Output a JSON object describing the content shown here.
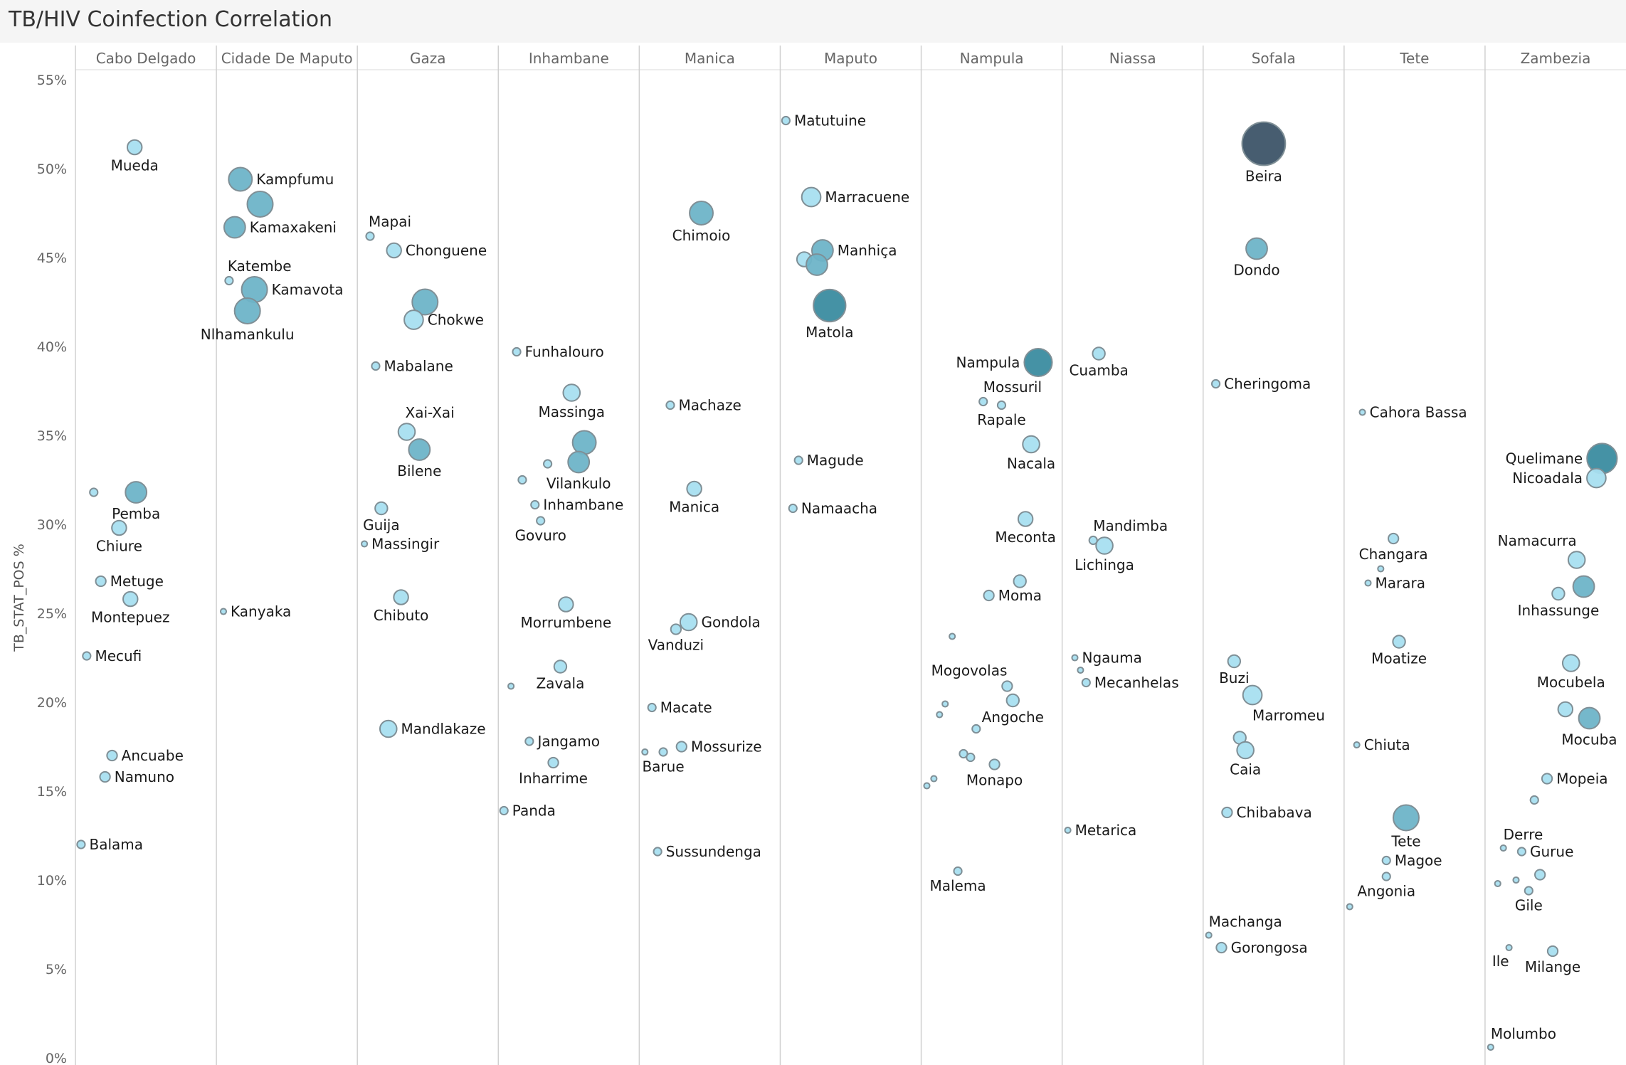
{
  "title": "TB/HIV Coinfection Correlation",
  "chart_data": {
    "type": "scatter",
    "ylabel": "TB_STAT_POS %",
    "ylim": [
      0,
      55
    ],
    "yticks": [
      "0%",
      "5%",
      "10%",
      "15%",
      "20%",
      "25%",
      "30%",
      "35%",
      "40%",
      "45%",
      "50%",
      "55%"
    ],
    "grid": false,
    "colors": {
      "low": "#a8dff0",
      "mid": "#6eb4c8",
      "high": "#3b8ca0",
      "max": "#3d5468",
      "stroke": "#7f8f96"
    },
    "columns": [
      {
        "name": "Cabo Delgado",
        "points": [
          {
            "label": "Mueda",
            "y": 51.2,
            "size": 5,
            "lx": 0.42,
            "lpos": "below"
          },
          {
            "label": "",
            "y": 31.8,
            "size": 2,
            "lx": 0.13
          },
          {
            "label": "Pemba",
            "y": 31.8,
            "size": 8,
            "lx": 0.43,
            "lpos": "below"
          },
          {
            "label": "Chiure",
            "y": 29.8,
            "size": 5,
            "lx": 0.31,
            "lpos": "below"
          },
          {
            "label": "Metuge",
            "y": 26.8,
            "size": 3,
            "lx": 0.18,
            "lpos": "right"
          },
          {
            "label": "Montepuez",
            "y": 25.8,
            "size": 5,
            "lx": 0.39,
            "lpos": "below"
          },
          {
            "label": "Mecufi",
            "y": 22.6,
            "size": 2,
            "lx": 0.08,
            "lpos": "right"
          },
          {
            "label": "Ancuabe",
            "y": 17.0,
            "size": 3,
            "lx": 0.26,
            "lpos": "right"
          },
          {
            "label": "Namuno",
            "y": 15.8,
            "size": 3,
            "lx": 0.21,
            "lpos": "right"
          },
          {
            "label": "Balama",
            "y": 12.0,
            "size": 2,
            "lx": 0.04,
            "lpos": "right"
          }
        ]
      },
      {
        "name": "Cidade De Maputo",
        "points": [
          {
            "label": "Kampfumu",
            "y": 49.4,
            "size": 9,
            "lx": 0.17,
            "lpos": "right"
          },
          {
            "label": "",
            "y": 48.0,
            "size": 10,
            "lx": 0.31
          },
          {
            "label": "Kamaxakeni",
            "y": 46.7,
            "size": 8,
            "lx": 0.13,
            "lpos": "right"
          },
          {
            "label": "Katembe",
            "y": 43.7,
            "size": 2,
            "lx": 0.09,
            "lpos": "above"
          },
          {
            "label": "Kamavota",
            "y": 43.2,
            "size": 10,
            "lx": 0.27,
            "lpos": "right"
          },
          {
            "label": "Nlhamankulu",
            "y": 42.0,
            "size": 10,
            "lx": 0.22,
            "lpos": "below"
          },
          {
            "label": "Kanyaka",
            "y": 25.1,
            "size": 1,
            "lx": 0.05,
            "lpos": "right"
          }
        ]
      },
      {
        "name": "Gaza",
        "points": [
          {
            "label": "Mapai",
            "y": 46.2,
            "size": 2,
            "lx": 0.09,
            "lpos": "above"
          },
          {
            "label": "Chonguene",
            "y": 45.4,
            "size": 5,
            "lx": 0.26,
            "lpos": "right"
          },
          {
            "label": "",
            "y": 42.5,
            "size": 10,
            "lx": 0.48
          },
          {
            "label": "Chokwe",
            "y": 41.5,
            "size": 7,
            "lx": 0.4,
            "lpos": "right"
          },
          {
            "label": "Mabalane",
            "y": 38.9,
            "size": 2,
            "lx": 0.13,
            "lpos": "right"
          },
          {
            "label": "Xai-Xai",
            "y": 35.2,
            "size": 6,
            "lx": 0.35,
            "lpos": "above"
          },
          {
            "label": "Bilene",
            "y": 34.2,
            "size": 8,
            "lx": 0.44,
            "lpos": "below"
          },
          {
            "label": "Guija",
            "y": 30.9,
            "size": 4,
            "lx": 0.17,
            "lpos": "below"
          },
          {
            "label": "Massingir",
            "y": 28.9,
            "size": 1,
            "lx": 0.05,
            "lpos": "right"
          },
          {
            "label": "Chibuto",
            "y": 25.9,
            "size": 5,
            "lx": 0.31,
            "lpos": "below"
          },
          {
            "label": "Mandlakaze",
            "y": 18.5,
            "size": 6,
            "lx": 0.22,
            "lpos": "right"
          }
        ]
      },
      {
        "name": "Inhambane",
        "points": [
          {
            "label": "Funhalouro",
            "y": 39.7,
            "size": 2,
            "lx": 0.13,
            "lpos": "right"
          },
          {
            "label": "Massinga",
            "y": 37.4,
            "size": 6,
            "lx": 0.52,
            "lpos": "below"
          },
          {
            "label": "",
            "y": 34.6,
            "size": 9,
            "lx": 0.61
          },
          {
            "label": "",
            "y": 33.4,
            "size": 2,
            "lx": 0.35
          },
          {
            "label": "Vilankulo",
            "y": 33.5,
            "size": 8,
            "lx": 0.57,
            "lpos": "below"
          },
          {
            "label": "",
            "y": 32.5,
            "size": 2,
            "lx": 0.17
          },
          {
            "label": "Inhambane",
            "y": 31.1,
            "size": 2,
            "lx": 0.26,
            "lpos": "right"
          },
          {
            "label": "Govuro",
            "y": 30.2,
            "size": 2,
            "lx": 0.3,
            "lpos": "below"
          },
          {
            "label": "Morrumbene",
            "y": 25.5,
            "size": 5,
            "lx": 0.48,
            "lpos": "below"
          },
          {
            "label": "Zavala",
            "y": 22.0,
            "size": 4,
            "lx": 0.44,
            "lpos": "below"
          },
          {
            "label": "",
            "y": 20.9,
            "size": 1,
            "lx": 0.09
          },
          {
            "label": "Jangamo",
            "y": 17.8,
            "size": 2,
            "lx": 0.22,
            "lpos": "right"
          },
          {
            "label": "Inharrime",
            "y": 16.6,
            "size": 3,
            "lx": 0.39,
            "lpos": "below"
          },
          {
            "label": "Panda",
            "y": 13.9,
            "size": 2,
            "lx": 0.04,
            "lpos": "right"
          }
        ]
      },
      {
        "name": "Manica",
        "points": [
          {
            "label": "Chimoio",
            "y": 47.5,
            "size": 9,
            "lx": 0.44,
            "lpos": "below"
          },
          {
            "label": "Machaze",
            "y": 36.7,
            "size": 2,
            "lx": 0.22,
            "lpos": "right"
          },
          {
            "label": "Manica",
            "y": 32.0,
            "size": 5,
            "lx": 0.39,
            "lpos": "below"
          },
          {
            "label": "Gondola",
            "y": 24.5,
            "size": 6,
            "lx": 0.35,
            "lpos": "right"
          },
          {
            "label": "Vanduzi",
            "y": 24.1,
            "size": 3,
            "lx": 0.26,
            "lpos": "below"
          },
          {
            "label": "Macate",
            "y": 19.7,
            "size": 2,
            "lx": 0.09,
            "lpos": "right"
          },
          {
            "label": "",
            "y": 17.2,
            "size": 1,
            "lx": 0.04
          },
          {
            "label": "Barue",
            "y": 17.2,
            "size": 2,
            "lx": 0.17,
            "lpos": "below"
          },
          {
            "label": "Mossurize",
            "y": 17.5,
            "size": 3,
            "lx": 0.3,
            "lpos": "right"
          },
          {
            "label": "Sussundenga",
            "y": 11.6,
            "size": 2,
            "lx": 0.13,
            "lpos": "right"
          }
        ]
      },
      {
        "name": "Maputo",
        "points": [
          {
            "label": "Matutuine",
            "y": 52.7,
            "size": 2,
            "lx": 0.04,
            "lpos": "right"
          },
          {
            "label": "Marracuene",
            "y": 48.4,
            "size": 7,
            "lx": 0.22,
            "lpos": "right"
          },
          {
            "label": "Manhiça",
            "y": 45.4,
            "size": 8,
            "lx": 0.3,
            "lpos": "right"
          },
          {
            "label": "",
            "y": 44.9,
            "size": 5,
            "lx": 0.17
          },
          {
            "label": "",
            "y": 44.6,
            "size": 8,
            "lx": 0.26
          },
          {
            "label": "Matola",
            "y": 42.3,
            "size": 13,
            "lx": 0.35,
            "lpos": "below"
          },
          {
            "label": "Magude",
            "y": 33.6,
            "size": 2,
            "lx": 0.13,
            "lpos": "right"
          },
          {
            "label": "Namaacha",
            "y": 30.9,
            "size": 2,
            "lx": 0.09,
            "lpos": "right"
          }
        ]
      },
      {
        "name": "Nampula",
        "points": [
          {
            "label": "Nampula",
            "y": 39.1,
            "size": 11,
            "lx": 0.83,
            "lpos": "left"
          },
          {
            "label": "Mossuril",
            "y": 36.9,
            "size": 2,
            "lx": 0.44,
            "lpos": "above-right"
          },
          {
            "label": "Rapale",
            "y": 36.7,
            "size": 2,
            "lx": 0.57,
            "lpos": "below"
          },
          {
            "label": "Nacala",
            "y": 34.5,
            "size": 6,
            "lx": 0.78,
            "lpos": "below"
          },
          {
            "label": "Meconta",
            "y": 30.3,
            "size": 5,
            "lx": 0.74,
            "lpos": "below"
          },
          {
            "label": "",
            "y": 26.8,
            "size": 4,
            "lx": 0.7
          },
          {
            "label": "Moma",
            "y": 26.0,
            "size": 3,
            "lx": 0.48,
            "lpos": "right"
          },
          {
            "label": "",
            "y": 23.7,
            "size": 1,
            "lx": 0.22
          },
          {
            "label": "Mogovolas",
            "y": 20.9,
            "size": 3,
            "lx": 0.61,
            "lpos": "above-left"
          },
          {
            "label": "Angoche",
            "y": 20.1,
            "size": 4,
            "lx": 0.65,
            "lpos": "below"
          },
          {
            "label": "",
            "y": 19.9,
            "size": 1,
            "lx": 0.17
          },
          {
            "label": "",
            "y": 19.3,
            "size": 1,
            "lx": 0.13
          },
          {
            "label": "",
            "y": 18.5,
            "size": 2,
            "lx": 0.39
          },
          {
            "label": "",
            "y": 17.1,
            "size": 2,
            "lx": 0.3
          },
          {
            "label": "",
            "y": 16.9,
            "size": 2,
            "lx": 0.35
          },
          {
            "label": "Monapo",
            "y": 16.5,
            "size": 3,
            "lx": 0.52,
            "lpos": "below"
          },
          {
            "label": "",
            "y": 15.7,
            "size": 1,
            "lx": 0.09
          },
          {
            "label": "",
            "y": 15.3,
            "size": 1,
            "lx": 0.04
          },
          {
            "label": "Malema",
            "y": 10.5,
            "size": 2,
            "lx": 0.26,
            "lpos": "below"
          }
        ]
      },
      {
        "name": "Niassa",
        "points": [
          {
            "label": "Cuamba",
            "y": 39.6,
            "size": 4,
            "lx": 0.26,
            "lpos": "below"
          },
          {
            "label": "Mandimba",
            "y": 29.1,
            "size": 2,
            "lx": 0.22,
            "lpos": "above-right"
          },
          {
            "label": "Lichinga",
            "y": 28.8,
            "size": 6,
            "lx": 0.3,
            "lpos": "below"
          },
          {
            "label": "Ngauma",
            "y": 22.5,
            "size": 1,
            "lx": 0.09,
            "lpos": "right"
          },
          {
            "label": "",
            "y": 21.8,
            "size": 1,
            "lx": 0.13
          },
          {
            "label": "Mecanhelas",
            "y": 21.1,
            "size": 2,
            "lx": 0.17,
            "lpos": "right"
          },
          {
            "label": "Metarica",
            "y": 12.8,
            "size": 1,
            "lx": 0.04,
            "lpos": "right"
          }
        ]
      },
      {
        "name": "Sofala",
        "points": [
          {
            "label": "Beira",
            "y": 51.4,
            "size": 18,
            "lx": 0.43,
            "lpos": "below"
          },
          {
            "label": "Dondo",
            "y": 45.5,
            "size": 8,
            "lx": 0.38,
            "lpos": "below"
          },
          {
            "label": "Cheringoma",
            "y": 37.9,
            "size": 2,
            "lx": 0.09,
            "lpos": "right"
          },
          {
            "label": "Buzi",
            "y": 22.3,
            "size": 4,
            "lx": 0.22,
            "lpos": "below"
          },
          {
            "label": "Marromeu",
            "y": 20.4,
            "size": 7,
            "lx": 0.35,
            "lpos": "below-right"
          },
          {
            "label": "",
            "y": 18.0,
            "size": 4,
            "lx": 0.26
          },
          {
            "label": "Caia",
            "y": 17.3,
            "size": 6,
            "lx": 0.3,
            "lpos": "below"
          },
          {
            "label": "Chibabava",
            "y": 13.8,
            "size": 3,
            "lx": 0.17,
            "lpos": "right"
          },
          {
            "label": "Machanga",
            "y": 6.9,
            "size": 1,
            "lx": 0.04,
            "lpos": "above-right"
          },
          {
            "label": "Gorongosa",
            "y": 6.2,
            "size": 3,
            "lx": 0.13,
            "lpos": "right"
          }
        ]
      },
      {
        "name": "Tete",
        "points": [
          {
            "label": "Cahora Bassa",
            "y": 36.3,
            "size": 1,
            "lx": 0.13,
            "lpos": "right"
          },
          {
            "label": "Changara",
            "y": 29.2,
            "size": 3,
            "lx": 0.35,
            "lpos": "below"
          },
          {
            "label": "",
            "y": 27.5,
            "size": 1,
            "lx": 0.26
          },
          {
            "label": "Marara",
            "y": 26.7,
            "size": 1,
            "lx": 0.17,
            "lpos": "right"
          },
          {
            "label": "Moatize",
            "y": 23.4,
            "size": 4,
            "lx": 0.39,
            "lpos": "below"
          },
          {
            "label": "Chiuta",
            "y": 17.6,
            "size": 1,
            "lx": 0.09,
            "lpos": "right"
          },
          {
            "label": "Tete",
            "y": 13.5,
            "size": 10,
            "lx": 0.44,
            "lpos": "below"
          },
          {
            "label": "Magoe",
            "y": 11.1,
            "size": 2,
            "lx": 0.3,
            "lpos": "right"
          },
          {
            "label": "Angonia",
            "y": 10.2,
            "size": 2,
            "lx": 0.3,
            "lpos": "below"
          },
          {
            "label": "",
            "y": 8.5,
            "size": 1,
            "lx": 0.04
          }
        ]
      },
      {
        "name": "Zambezia",
        "points": [
          {
            "label": "Quelimane",
            "y": 33.7,
            "size": 12,
            "lx": 0.83,
            "lpos": "left"
          },
          {
            "label": "Nicoadala",
            "y": 32.6,
            "size": 7,
            "lx": 0.79,
            "lpos": "left"
          },
          {
            "label": "Namacurra",
            "y": 28.0,
            "size": 6,
            "lx": 0.65,
            "lpos": "above-left"
          },
          {
            "label": "",
            "y": 26.5,
            "size": 8,
            "lx": 0.7
          },
          {
            "label": "Inhassunge",
            "y": 26.1,
            "size": 4,
            "lx": 0.52,
            "lpos": "below"
          },
          {
            "label": "Mocubela",
            "y": 22.2,
            "size": 6,
            "lx": 0.61,
            "lpos": "below"
          },
          {
            "label": "",
            "y": 19.6,
            "size": 5,
            "lx": 0.57
          },
          {
            "label": "Mocuba",
            "y": 19.1,
            "size": 8,
            "lx": 0.74,
            "lpos": "below"
          },
          {
            "label": "Mopeia",
            "y": 15.7,
            "size": 3,
            "lx": 0.44,
            "lpos": "right"
          },
          {
            "label": "",
            "y": 14.5,
            "size": 2,
            "lx": 0.35
          },
          {
            "label": "Derre",
            "y": 11.8,
            "size": 1,
            "lx": 0.13,
            "lpos": "above-right"
          },
          {
            "label": "Gurue",
            "y": 11.6,
            "size": 2,
            "lx": 0.26,
            "lpos": "right"
          },
          {
            "label": "",
            "y": 10.3,
            "size": 3,
            "lx": 0.39
          },
          {
            "label": "",
            "y": 10.0,
            "size": 1,
            "lx": 0.22
          },
          {
            "label": "",
            "y": 9.8,
            "size": 1,
            "lx": 0.09
          },
          {
            "label": "Gile",
            "y": 9.4,
            "size": 2,
            "lx": 0.31,
            "lpos": "below"
          },
          {
            "label": "Ile",
            "y": 6.2,
            "size": 1,
            "lx": 0.17,
            "lpos": "below-left"
          },
          {
            "label": "Milange",
            "y": 6.0,
            "size": 3,
            "lx": 0.48,
            "lpos": "below"
          },
          {
            "label": "Molumbo",
            "y": 0.6,
            "size": 1,
            "lx": 0.04,
            "lpos": "above-right"
          }
        ]
      }
    ]
  }
}
